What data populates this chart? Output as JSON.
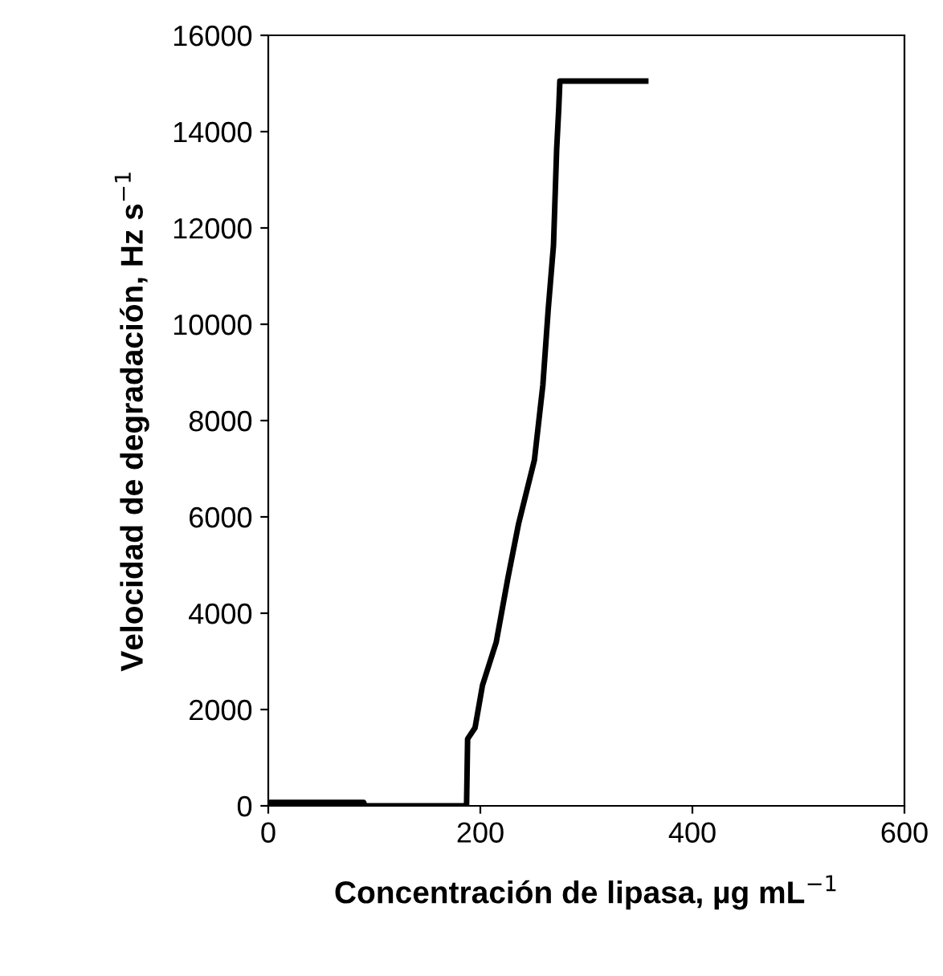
{
  "chart_data": {
    "type": "line",
    "xlabel": "Concentración de lipasa, µg mL$^{−1}$",
    "ylabel": "Velocidad de degradación, Hz s$^{−1}$",
    "series": [
      {
        "color": "#000000",
        "x": [
          0,
          90,
          91,
          187,
          188,
          195,
          202,
          215,
          226,
          236,
          251,
          259,
          264,
          269,
          272,
          274,
          275,
          356
        ],
        "values": [
          70,
          70,
          0,
          0,
          1390,
          1620,
          2500,
          3400,
          4730,
          5850,
          7180,
          8740,
          10300,
          11640,
          13640,
          14500,
          15050,
          15050
        ]
      }
    ],
    "xlim": [
      0,
      600
    ],
    "ylim": [
      0,
      16000
    ],
    "xticks": [
      0,
      200,
      400,
      600
    ],
    "yticks": [
      0,
      2000,
      4000,
      6000,
      8000,
      10000,
      12000,
      14000,
      16000
    ],
    "grid": false,
    "marker": "none",
    "line_style": "solid",
    "legend": false
  }
}
